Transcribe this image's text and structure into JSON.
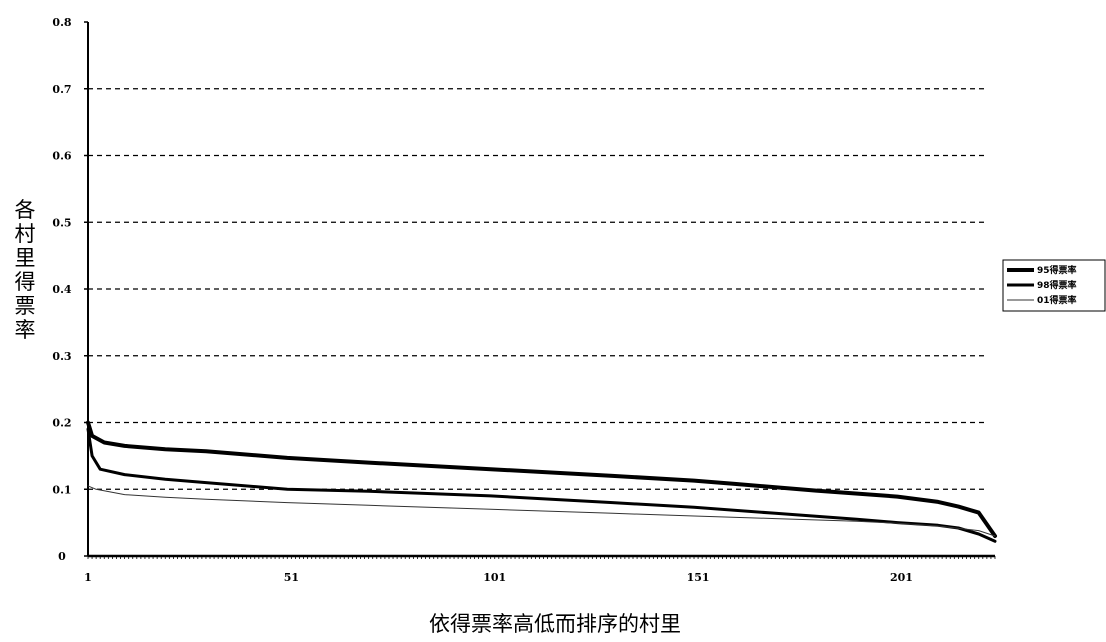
{
  "chart_data": {
    "type": "line",
    "xlabel": "依得票率高低而排序的村里",
    "ylabel": "各村里得票率",
    "xlim": [
      1,
      224
    ],
    "ylim": [
      0,
      0.8
    ],
    "x_ticks": [
      1,
      51,
      101,
      151,
      201
    ],
    "x_tick_labels": [
      "1",
      "51",
      "101",
      "151",
      "201"
    ],
    "y_ticks": [
      0,
      0.1,
      0.2,
      0.3,
      0.4,
      0.5,
      0.6,
      0.7,
      0.8
    ],
    "y_tick_labels": [
      "0",
      "0.1",
      "0.2",
      "0.3",
      "0.4",
      "0.5",
      "0.6",
      "0.7",
      "0.8"
    ],
    "grid": "horizontal dashed",
    "legend_position": "right",
    "series": [
      {
        "name": "95得票率",
        "x": [
          1,
          2,
          5,
          10,
          20,
          30,
          50,
          70,
          100,
          130,
          150,
          160,
          180,
          200,
          210,
          215,
          220,
          224
        ],
        "values": [
          0.2,
          0.18,
          0.17,
          0.165,
          0.16,
          0.157,
          0.147,
          0.14,
          0.13,
          0.12,
          0.113,
          0.108,
          0.098,
          0.089,
          0.081,
          0.074,
          0.065,
          0.03
        ],
        "color": "#000000",
        "width": 4
      },
      {
        "name": "98得票率",
        "x": [
          1,
          2,
          4,
          10,
          20,
          30,
          50,
          70,
          100,
          130,
          150,
          170,
          190,
          200,
          210,
          215,
          220,
          224
        ],
        "values": [
          0.19,
          0.15,
          0.13,
          0.122,
          0.115,
          0.11,
          0.1,
          0.097,
          0.09,
          0.08,
          0.073,
          0.064,
          0.055,
          0.05,
          0.046,
          0.042,
          0.033,
          0.022
        ],
        "color": "#000000",
        "width": 3
      },
      {
        "name": "01得票率",
        "x": [
          1,
          3,
          10,
          20,
          30,
          50,
          70,
          100,
          130,
          150,
          170,
          190,
          200,
          210,
          220,
          224
        ],
        "values": [
          0.105,
          0.1,
          0.092,
          0.088,
          0.085,
          0.08,
          0.076,
          0.07,
          0.064,
          0.06,
          0.056,
          0.052,
          0.049,
          0.045,
          0.038,
          0.03
        ],
        "color": "#333333",
        "width": 1
      }
    ]
  }
}
